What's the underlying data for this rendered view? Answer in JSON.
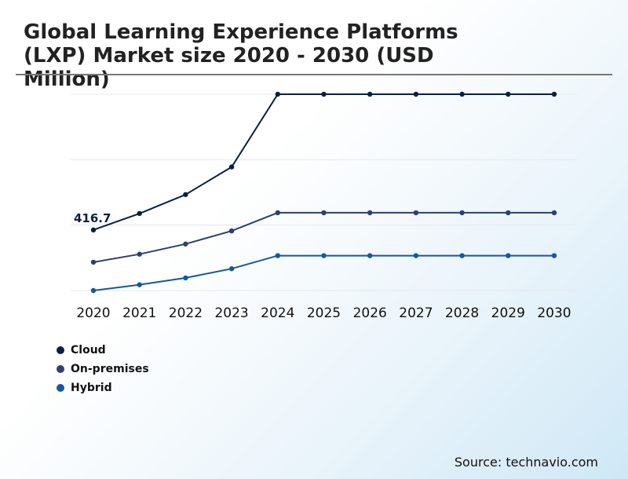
{
  "title": "Global Learning Experience Platforms (LXP) Market size 2020 - 2030 (USD Million)",
  "source": "Source: technavio.com",
  "colors": {
    "cloud": "#0b1f45",
    "on_premises": "#2f3f6e",
    "hybrid": "#1557a0",
    "grid": "#e3e8ee"
  },
  "chart_data": {
    "type": "line",
    "title": "Global Learning Experience Platforms (LXP) Market size 2020 - 2030 (USD Million)",
    "xlabel": "",
    "ylabel": "",
    "x": [
      "2020",
      "2021",
      "2022",
      "2023",
      "2024",
      "2025",
      "2026",
      "2027",
      "2028",
      "2029",
      "2030"
    ],
    "ylim": [
      0,
      1350
    ],
    "grid": true,
    "legend_position": "bottom-left",
    "annotations": [
      {
        "series": "Cloud",
        "x": "2020",
        "label": "416.7"
      }
    ],
    "series": [
      {
        "name": "Cloud",
        "color": "#0b1f45",
        "values": [
          416.7,
          530,
          660,
          850,
          1350,
          1350,
          1350,
          1350,
          1350,
          1350,
          1350
        ]
      },
      {
        "name": "On-premises",
        "color": "#2f3f6e",
        "values": [
          195,
          250,
          320,
          410,
          535,
          535,
          535,
          535,
          535,
          535,
          535
        ]
      },
      {
        "name": "Hybrid",
        "color": "#1557a0",
        "values": [
          0,
          40,
          87,
          150,
          240,
          240,
          240,
          240,
          240,
          240,
          240
        ]
      }
    ]
  }
}
